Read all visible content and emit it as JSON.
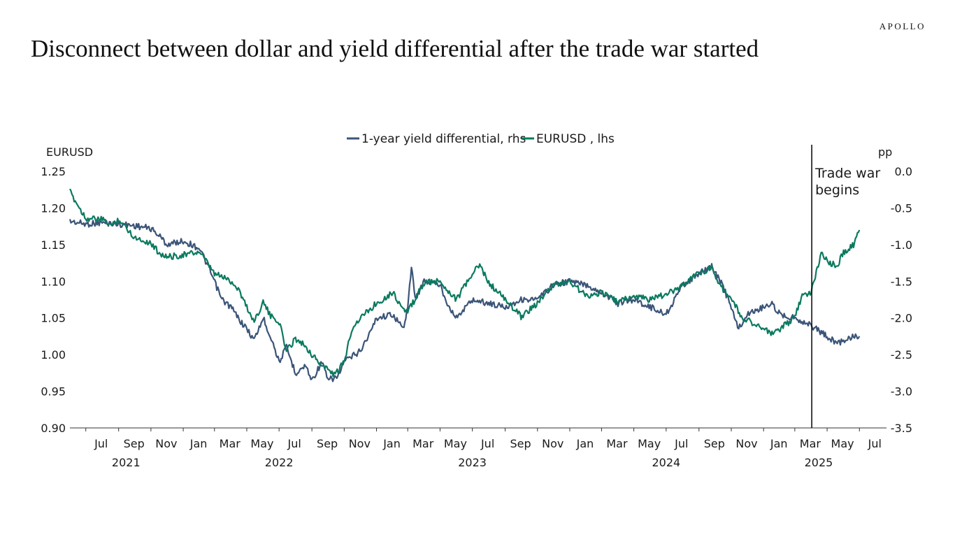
{
  "brand": "APOLLO",
  "title": "Disconnect between dollar and yield differential after the trade war started",
  "colors": {
    "yield_diff": "#3b5478",
    "eurusd": "#0b7a5f",
    "axis": "#333333"
  },
  "chart_data": {
    "type": "line",
    "legend": [
      "1-year yield differential, rhs",
      "EURUSD , lhs"
    ],
    "left_axis": {
      "label": "EURUSD",
      "min": 0.9,
      "max": 1.25,
      "ticks": [
        "0.90",
        "0.95",
        "1.00",
        "1.05",
        "1.10",
        "1.15",
        "1.20",
        "1.25"
      ]
    },
    "right_axis": {
      "label": "pp",
      "min": -3.5,
      "max": 0.0,
      "ticks": [
        "-3.5",
        "-3.0",
        "-2.5",
        "-2.0",
        "-1.5",
        "-1.0",
        "-0.5",
        "0.0"
      ]
    },
    "x_range": [
      "2021-06-01",
      "2025-07-31"
    ],
    "x_month_labels": [
      {
        "label": "Jul",
        "date": "2021-07-01"
      },
      {
        "label": "Sep",
        "date": "2021-09-01"
      },
      {
        "label": "Nov",
        "date": "2021-11-01"
      },
      {
        "label": "Jan",
        "date": "2022-01-01"
      },
      {
        "label": "Mar",
        "date": "2022-03-01"
      },
      {
        "label": "May",
        "date": "2022-05-01"
      },
      {
        "label": "Jul",
        "date": "2022-07-01"
      },
      {
        "label": "Sep",
        "date": "2022-09-01"
      },
      {
        "label": "Nov",
        "date": "2022-11-01"
      },
      {
        "label": "Jan",
        "date": "2023-01-01"
      },
      {
        "label": "Mar",
        "date": "2023-03-01"
      },
      {
        "label": "May",
        "date": "2023-05-01"
      },
      {
        "label": "Jul",
        "date": "2023-07-01"
      },
      {
        "label": "Sep",
        "date": "2023-09-01"
      },
      {
        "label": "Nov",
        "date": "2023-11-01"
      },
      {
        "label": "Jan",
        "date": "2024-01-01"
      },
      {
        "label": "Mar",
        "date": "2024-03-01"
      },
      {
        "label": "May",
        "date": "2024-05-01"
      },
      {
        "label": "Jul",
        "date": "2024-07-01"
      },
      {
        "label": "Sep",
        "date": "2024-09-01"
      },
      {
        "label": "Nov",
        "date": "2024-11-01"
      },
      {
        "label": "Jan",
        "date": "2025-01-01"
      },
      {
        "label": "Mar",
        "date": "2025-03-01"
      },
      {
        "label": "May",
        "date": "2025-05-01"
      },
      {
        "label": "Jul",
        "date": "2025-07-01"
      }
    ],
    "x_year_labels": [
      {
        "label": "2021",
        "date": "2021-09-15"
      },
      {
        "label": "2022",
        "date": "2022-07-01"
      },
      {
        "label": "2023",
        "date": "2023-07-01"
      },
      {
        "label": "2024",
        "date": "2024-07-01"
      },
      {
        "label": "2025",
        "date": "2025-04-15"
      }
    ],
    "annotation": {
      "text_lines": [
        "Trade war",
        "begins"
      ],
      "date": "2025-04-02"
    },
    "series": [
      {
        "name": "EURUSD , lhs",
        "axis": "left",
        "color": "#0b7a5f",
        "points": [
          [
            "2021-06-01",
            1.222
          ],
          [
            "2021-06-15",
            1.205
          ],
          [
            "2021-07-01",
            1.186
          ],
          [
            "2021-08-01",
            1.184
          ],
          [
            "2021-08-20",
            1.176
          ],
          [
            "2021-09-01",
            1.185
          ],
          [
            "2021-10-01",
            1.16
          ],
          [
            "2021-11-01",
            1.152
          ],
          [
            "2021-11-15",
            1.14
          ],
          [
            "2021-12-01",
            1.133
          ],
          [
            "2022-01-01",
            1.136
          ],
          [
            "2022-02-01",
            1.14
          ],
          [
            "2022-03-01",
            1.11
          ],
          [
            "2022-03-20",
            1.105
          ],
          [
            "2022-04-01",
            1.1
          ],
          [
            "2022-04-15",
            1.09
          ],
          [
            "2022-05-01",
            1.065
          ],
          [
            "2022-05-15",
            1.045
          ],
          [
            "2022-06-01",
            1.072
          ],
          [
            "2022-06-15",
            1.052
          ],
          [
            "2022-07-01",
            1.045
          ],
          [
            "2022-07-15",
            1.005
          ],
          [
            "2022-08-01",
            1.022
          ],
          [
            "2022-08-20",
            1.012
          ],
          [
            "2022-09-01",
            1.0
          ],
          [
            "2022-09-20",
            0.985
          ],
          [
            "2022-10-01",
            0.98
          ],
          [
            "2022-10-15",
            0.972
          ],
          [
            "2022-11-01",
            0.99
          ],
          [
            "2022-11-15",
            1.035
          ],
          [
            "2022-12-01",
            1.05
          ],
          [
            "2023-01-01",
            1.07
          ],
          [
            "2023-02-01",
            1.085
          ],
          [
            "2023-02-20",
            1.062
          ],
          [
            "2023-03-01",
            1.058
          ],
          [
            "2023-04-01",
            1.098
          ],
          [
            "2023-05-01",
            1.1
          ],
          [
            "2023-06-01",
            1.075
          ],
          [
            "2023-07-01",
            1.11
          ],
          [
            "2023-07-15",
            1.122
          ],
          [
            "2023-08-01",
            1.098
          ],
          [
            "2023-09-01",
            1.075
          ],
          [
            "2023-10-01",
            1.052
          ],
          [
            "2023-11-01",
            1.07
          ],
          [
            "2023-12-01",
            1.095
          ],
          [
            "2024-01-01",
            1.1
          ],
          [
            "2024-02-01",
            1.08
          ],
          [
            "2024-03-01",
            1.085
          ],
          [
            "2024-04-01",
            1.072
          ],
          [
            "2024-05-01",
            1.08
          ],
          [
            "2024-06-01",
            1.075
          ],
          [
            "2024-07-01",
            1.082
          ],
          [
            "2024-08-01",
            1.095
          ],
          [
            "2024-09-01",
            1.112
          ],
          [
            "2024-09-25",
            1.118
          ],
          [
            "2024-10-15",
            1.09
          ],
          [
            "2024-11-01",
            1.078
          ],
          [
            "2024-11-20",
            1.05
          ],
          [
            "2024-12-01",
            1.048
          ],
          [
            "2025-01-01",
            1.035
          ],
          [
            "2025-01-15",
            1.028
          ],
          [
            "2025-02-01",
            1.035
          ],
          [
            "2025-03-01",
            1.05
          ],
          [
            "2025-03-15",
            1.082
          ],
          [
            "2025-04-01",
            1.085
          ],
          [
            "2025-04-20",
            1.138
          ],
          [
            "2025-05-01",
            1.128
          ],
          [
            "2025-05-20",
            1.12
          ],
          [
            "2025-06-01",
            1.14
          ],
          [
            "2025-06-20",
            1.15
          ],
          [
            "2025-07-01",
            1.17
          ]
        ]
      },
      {
        "name": "1-year yield differential, rhs",
        "axis": "right",
        "color": "#3b5478",
        "points": [
          [
            "2021-06-01",
            -0.68
          ],
          [
            "2021-07-01",
            -0.72
          ],
          [
            "2021-08-01",
            -0.7
          ],
          [
            "2021-09-01",
            -0.72
          ],
          [
            "2021-10-01",
            -0.74
          ],
          [
            "2021-11-01",
            -0.78
          ],
          [
            "2021-11-20",
            -0.9
          ],
          [
            "2021-12-01",
            -1.0
          ],
          [
            "2022-01-01",
            -0.95
          ],
          [
            "2022-02-01",
            -1.05
          ],
          [
            "2022-02-20",
            -1.35
          ],
          [
            "2022-03-15",
            -1.75
          ],
          [
            "2022-04-01",
            -1.85
          ],
          [
            "2022-04-20",
            -2.05
          ],
          [
            "2022-05-01",
            -2.15
          ],
          [
            "2022-05-15",
            -2.3
          ],
          [
            "2022-06-01",
            -2.0
          ],
          [
            "2022-06-20",
            -2.35
          ],
          [
            "2022-07-01",
            -2.6
          ],
          [
            "2022-07-15",
            -2.4
          ],
          [
            "2022-08-01",
            -2.75
          ],
          [
            "2022-08-20",
            -2.65
          ],
          [
            "2022-09-01",
            -2.85
          ],
          [
            "2022-09-20",
            -2.6
          ],
          [
            "2022-10-01",
            -2.85
          ],
          [
            "2022-10-20",
            -2.8
          ],
          [
            "2022-11-01",
            -2.6
          ],
          [
            "2022-12-01",
            -2.45
          ],
          [
            "2022-12-20",
            -2.2
          ],
          [
            "2023-01-01",
            -2.0
          ],
          [
            "2023-02-01",
            -1.95
          ],
          [
            "2023-02-20",
            -2.15
          ],
          [
            "2023-03-01",
            -1.85
          ],
          [
            "2023-03-08",
            -1.3
          ],
          [
            "2023-03-15",
            -1.75
          ],
          [
            "2023-04-01",
            -1.5
          ],
          [
            "2023-05-01",
            -1.55
          ],
          [
            "2023-05-15",
            -1.8
          ],
          [
            "2023-06-01",
            -2.0
          ],
          [
            "2023-07-01",
            -1.75
          ],
          [
            "2023-08-01",
            -1.8
          ],
          [
            "2023-09-01",
            -1.85
          ],
          [
            "2023-10-01",
            -1.75
          ],
          [
            "2023-11-01",
            -1.75
          ],
          [
            "2023-12-01",
            -1.55
          ],
          [
            "2024-01-01",
            -1.5
          ],
          [
            "2024-02-01",
            -1.55
          ],
          [
            "2024-03-01",
            -1.65
          ],
          [
            "2024-04-01",
            -1.8
          ],
          [
            "2024-05-01",
            -1.75
          ],
          [
            "2024-06-01",
            -1.85
          ],
          [
            "2024-07-01",
            -1.95
          ],
          [
            "2024-08-01",
            -1.55
          ],
          [
            "2024-09-01",
            -1.4
          ],
          [
            "2024-09-25",
            -1.3
          ],
          [
            "2024-10-15",
            -1.55
          ],
          [
            "2024-11-01",
            -1.85
          ],
          [
            "2024-11-15",
            -2.15
          ],
          [
            "2024-12-01",
            -1.95
          ],
          [
            "2025-01-01",
            -1.85
          ],
          [
            "2025-01-15",
            -1.8
          ],
          [
            "2025-02-01",
            -1.95
          ],
          [
            "2025-03-01",
            -2.0
          ],
          [
            "2025-04-01",
            -2.1
          ],
          [
            "2025-04-20",
            -2.2
          ],
          [
            "2025-05-01",
            -2.25
          ],
          [
            "2025-05-20",
            -2.35
          ],
          [
            "2025-06-01",
            -2.3
          ],
          [
            "2025-06-20",
            -2.25
          ],
          [
            "2025-07-01",
            -2.25
          ]
        ]
      }
    ]
  }
}
